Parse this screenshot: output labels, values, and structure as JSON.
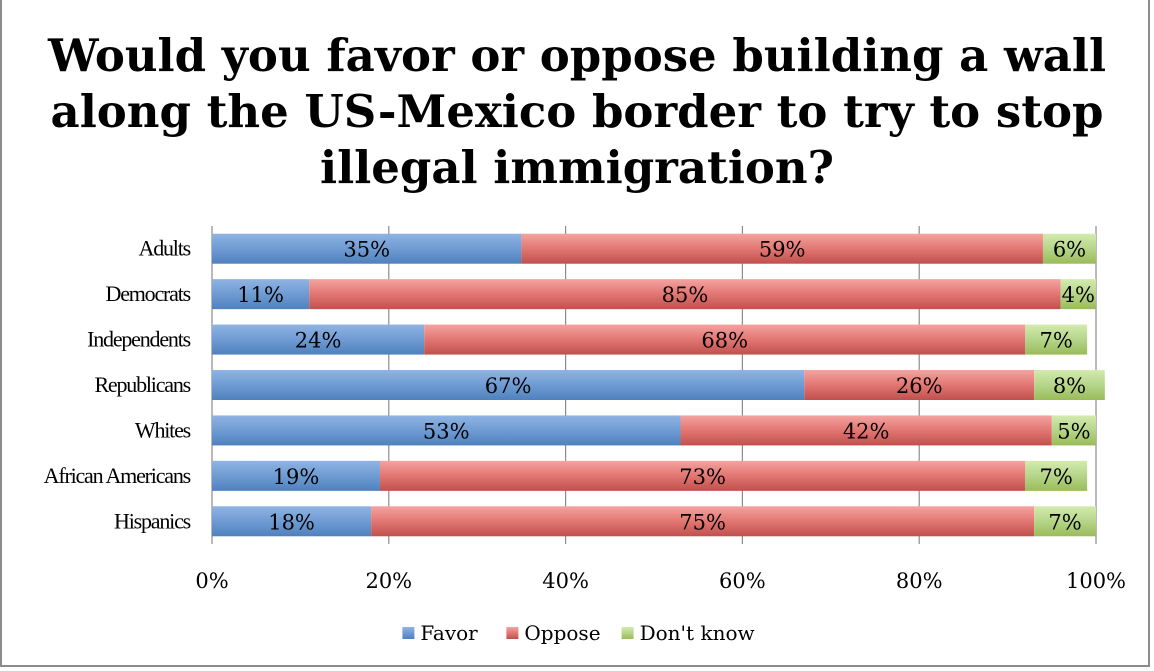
{
  "chart_data": {
    "type": "bar",
    "orientation": "horizontal",
    "stacked": "percent",
    "title": "Would you favor or oppose building a wall along the US-Mexico border to try to stop illegal immigration?",
    "categories": [
      "Adults",
      "Democrats",
      "Independents",
      "Republicans",
      "Whites",
      "African Americans",
      "Hispanics"
    ],
    "series": [
      {
        "name": "Favor",
        "color": "#4f81bd",
        "values": [
          35,
          11,
          24,
          67,
          53,
          19,
          18
        ],
        "labels": [
          "35%",
          "11%",
          "24%",
          "67%",
          "53%",
          "19%",
          "18%"
        ]
      },
      {
        "name": "Oppose",
        "color": "#c0504d",
        "values": [
          59,
          85,
          68,
          26,
          42,
          73,
          75
        ],
        "labels": [
          "59%",
          "85%",
          "68%",
          "26%",
          "42%",
          "73%",
          "75%"
        ]
      },
      {
        "name": "Don't know",
        "color": "#9bbb59",
        "values": [
          6,
          4,
          7,
          8,
          5,
          7,
          7
        ],
        "labels": [
          "6%",
          "4%",
          "7%",
          "8%",
          "5%",
          "7%",
          "7%"
        ]
      }
    ],
    "xlim": [
      0,
      100
    ],
    "xticks": [
      "0%",
      "20%",
      "40%",
      "60%",
      "80%",
      "100%"
    ],
    "grid": "vertical",
    "legend": "bottom"
  }
}
